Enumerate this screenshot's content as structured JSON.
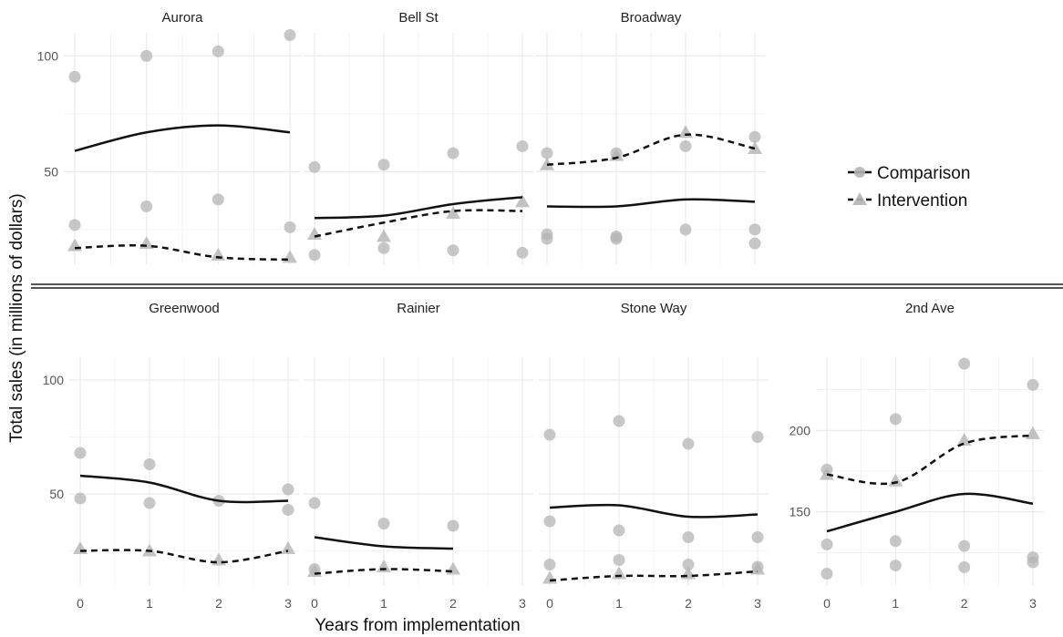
{
  "chart_data": {
    "type": "scatter",
    "ylabel": "Total sales (in millions of dollars)",
    "xlabel": "Years from implementation",
    "legend": {
      "placement": "right",
      "items": [
        {
          "name": "Comparison",
          "line": "solid",
          "marker": "circle"
        },
        {
          "name": "Intervention",
          "line": "dashed",
          "marker": "triangle"
        }
      ]
    },
    "colors": {
      "line": "#111111",
      "point": "#b4b4b4",
      "grid": "#ebebeb",
      "divider": "#555555"
    },
    "panels": [
      {
        "title": "Aurora",
        "xticks": [
          0,
          1,
          2,
          3
        ],
        "yticks": [
          50,
          100
        ],
        "ylim": [
          10,
          110
        ],
        "comparison_points": [
          {
            "x": 0,
            "y": 91
          },
          {
            "x": 0,
            "y": 27
          },
          {
            "x": 1,
            "y": 100
          },
          {
            "x": 1,
            "y": 35
          },
          {
            "x": 2,
            "y": 102
          },
          {
            "x": 2,
            "y": 38
          },
          {
            "x": 3,
            "y": 109
          },
          {
            "x": 3,
            "y": 26
          }
        ],
        "intervention_points": [
          {
            "x": 0,
            "y": 18
          },
          {
            "x": 1,
            "y": 19
          },
          {
            "x": 2,
            "y": 14
          },
          {
            "x": 3,
            "y": 13
          }
        ],
        "comparison_line": [
          {
            "x": 0,
            "y": 59
          },
          {
            "x": 1,
            "y": 67
          },
          {
            "x": 2,
            "y": 70
          },
          {
            "x": 3,
            "y": 67
          }
        ],
        "intervention_line": [
          {
            "x": 0,
            "y": 17
          },
          {
            "x": 1,
            "y": 18
          },
          {
            "x": 2,
            "y": 13
          },
          {
            "x": 3,
            "y": 12
          }
        ]
      },
      {
        "title": "Bell St",
        "xticks": [
          0,
          1,
          2,
          3
        ],
        "yticks": [
          50,
          100
        ],
        "ylim": [
          10,
          110
        ],
        "comparison_points": [
          {
            "x": 0,
            "y": 52
          },
          {
            "x": 0,
            "y": 14
          },
          {
            "x": 1,
            "y": 53
          },
          {
            "x": 1,
            "y": 17
          },
          {
            "x": 2,
            "y": 58
          },
          {
            "x": 2,
            "y": 16
          },
          {
            "x": 3,
            "y": 61
          },
          {
            "x": 3,
            "y": 15
          }
        ],
        "intervention_points": [
          {
            "x": 0,
            "y": 23
          },
          {
            "x": 1,
            "y": 22
          },
          {
            "x": 2,
            "y": 32
          },
          {
            "x": 3,
            "y": 37
          }
        ],
        "comparison_line": [
          {
            "x": 0,
            "y": 30
          },
          {
            "x": 1,
            "y": 31
          },
          {
            "x": 2,
            "y": 36
          },
          {
            "x": 3,
            "y": 39
          }
        ],
        "intervention_line": [
          {
            "x": 0,
            "y": 22
          },
          {
            "x": 1,
            "y": 28
          },
          {
            "x": 2,
            "y": 33
          },
          {
            "x": 3,
            "y": 33
          }
        ]
      },
      {
        "title": "Broadway",
        "xticks": [
          0,
          1,
          2,
          3
        ],
        "yticks": [
          50,
          100
        ],
        "ylim": [
          10,
          110
        ],
        "comparison_points": [
          {
            "x": 0,
            "y": 58
          },
          {
            "x": 0,
            "y": 23
          },
          {
            "x": 0,
            "y": 21
          },
          {
            "x": 1,
            "y": 58
          },
          {
            "x": 1,
            "y": 22
          },
          {
            "x": 1,
            "y": 21
          },
          {
            "x": 2,
            "y": 61
          },
          {
            "x": 2,
            "y": 25
          },
          {
            "x": 3,
            "y": 65
          },
          {
            "x": 3,
            "y": 25
          },
          {
            "x": 3,
            "y": 19
          }
        ],
        "intervention_points": [
          {
            "x": 0,
            "y": 53
          },
          {
            "x": 1,
            "y": 57
          },
          {
            "x": 2,
            "y": 67
          },
          {
            "x": 3,
            "y": 60
          }
        ],
        "comparison_line": [
          {
            "x": 0,
            "y": 35
          },
          {
            "x": 1,
            "y": 35
          },
          {
            "x": 2,
            "y": 38
          },
          {
            "x": 3,
            "y": 37
          }
        ],
        "intervention_line": [
          {
            "x": 0,
            "y": 53
          },
          {
            "x": 1,
            "y": 56
          },
          {
            "x": 2,
            "y": 66
          },
          {
            "x": 3,
            "y": 60
          }
        ]
      },
      {
        "title": "Greenwood",
        "xticks": [
          0,
          1,
          2,
          3
        ],
        "yticks": [
          50,
          100
        ],
        "ylim": [
          10,
          110
        ],
        "comparison_points": [
          {
            "x": 0,
            "y": 68
          },
          {
            "x": 0,
            "y": 48
          },
          {
            "x": 1,
            "y": 63
          },
          {
            "x": 1,
            "y": 46
          },
          {
            "x": 2,
            "y": 47
          },
          {
            "x": 3,
            "y": 52
          },
          {
            "x": 3,
            "y": 43
          }
        ],
        "intervention_points": [
          {
            "x": 0,
            "y": 26
          },
          {
            "x": 1,
            "y": 25
          },
          {
            "x": 2,
            "y": 21
          },
          {
            "x": 3,
            "y": 26
          }
        ],
        "comparison_line": [
          {
            "x": 0,
            "y": 58
          },
          {
            "x": 1,
            "y": 55
          },
          {
            "x": 2,
            "y": 47
          },
          {
            "x": 3,
            "y": 47
          }
        ],
        "intervention_line": [
          {
            "x": 0,
            "y": 25
          },
          {
            "x": 1,
            "y": 25
          },
          {
            "x": 2,
            "y": 20
          },
          {
            "x": 3,
            "y": 25
          }
        ]
      },
      {
        "title": "Rainier",
        "xticks": [
          0,
          1,
          2,
          3
        ],
        "yticks": [
          50,
          100
        ],
        "ylim": [
          10,
          110
        ],
        "comparison_points": [
          {
            "x": 0,
            "y": 46
          },
          {
            "x": 0,
            "y": 17
          },
          {
            "x": 1,
            "y": 37
          },
          {
            "x": 2,
            "y": 36
          }
        ],
        "intervention_points": [
          {
            "x": 0,
            "y": 16
          },
          {
            "x": 1,
            "y": 18
          },
          {
            "x": 2,
            "y": 17
          }
        ],
        "comparison_line": [
          {
            "x": 0,
            "y": 31
          },
          {
            "x": 1,
            "y": 27
          },
          {
            "x": 2,
            "y": 26
          }
        ],
        "intervention_line": [
          {
            "x": 0,
            "y": 15
          },
          {
            "x": 1,
            "y": 17
          },
          {
            "x": 2,
            "y": 16
          }
        ]
      },
      {
        "title": "Stone Way",
        "xticks": [
          0,
          1,
          2,
          3
        ],
        "yticks": [
          50,
          100
        ],
        "ylim": [
          10,
          110
        ],
        "comparison_points": [
          {
            "x": 0,
            "y": 76
          },
          {
            "x": 0,
            "y": 38
          },
          {
            "x": 0,
            "y": 19
          },
          {
            "x": 1,
            "y": 82
          },
          {
            "x": 1,
            "y": 34
          },
          {
            "x": 1,
            "y": 21
          },
          {
            "x": 2,
            "y": 72
          },
          {
            "x": 2,
            "y": 31
          },
          {
            "x": 2,
            "y": 19
          },
          {
            "x": 3,
            "y": 75
          },
          {
            "x": 3,
            "y": 31
          },
          {
            "x": 3,
            "y": 18
          }
        ],
        "intervention_points": [
          {
            "x": 0,
            "y": 13
          },
          {
            "x": 1,
            "y": 15
          },
          {
            "x": 2,
            "y": 15
          },
          {
            "x": 3,
            "y": 17
          }
        ],
        "comparison_line": [
          {
            "x": 0,
            "y": 44
          },
          {
            "x": 1,
            "y": 45
          },
          {
            "x": 2,
            "y": 40
          },
          {
            "x": 3,
            "y": 41
          }
        ],
        "intervention_line": [
          {
            "x": 0,
            "y": 12
          },
          {
            "x": 1,
            "y": 14
          },
          {
            "x": 2,
            "y": 14
          },
          {
            "x": 3,
            "y": 16
          }
        ]
      },
      {
        "title": "2nd Ave",
        "xticks": [
          0,
          1,
          2,
          3
        ],
        "yticks": [
          150,
          200
        ],
        "ylim": [
          105,
          245
        ],
        "comparison_points": [
          {
            "x": 0,
            "y": 176
          },
          {
            "x": 0,
            "y": 130
          },
          {
            "x": 0,
            "y": 112
          },
          {
            "x": 1,
            "y": 207
          },
          {
            "x": 1,
            "y": 132
          },
          {
            "x": 1,
            "y": 117
          },
          {
            "x": 2,
            "y": 241
          },
          {
            "x": 2,
            "y": 129
          },
          {
            "x": 2,
            "y": 116
          },
          {
            "x": 3,
            "y": 228
          },
          {
            "x": 3,
            "y": 122
          },
          {
            "x": 3,
            "y": 119
          }
        ],
        "intervention_points": [
          {
            "x": 0,
            "y": 173
          },
          {
            "x": 1,
            "y": 169
          },
          {
            "x": 2,
            "y": 194
          },
          {
            "x": 3,
            "y": 198
          }
        ],
        "comparison_line": [
          {
            "x": 0,
            "y": 138
          },
          {
            "x": 1,
            "y": 150
          },
          {
            "x": 2,
            "y": 161
          },
          {
            "x": 3,
            "y": 155
          }
        ],
        "intervention_line": [
          {
            "x": 0,
            "y": 173
          },
          {
            "x": 1,
            "y": 168
          },
          {
            "x": 2,
            "y": 192
          },
          {
            "x": 3,
            "y": 197
          }
        ]
      }
    ]
  }
}
